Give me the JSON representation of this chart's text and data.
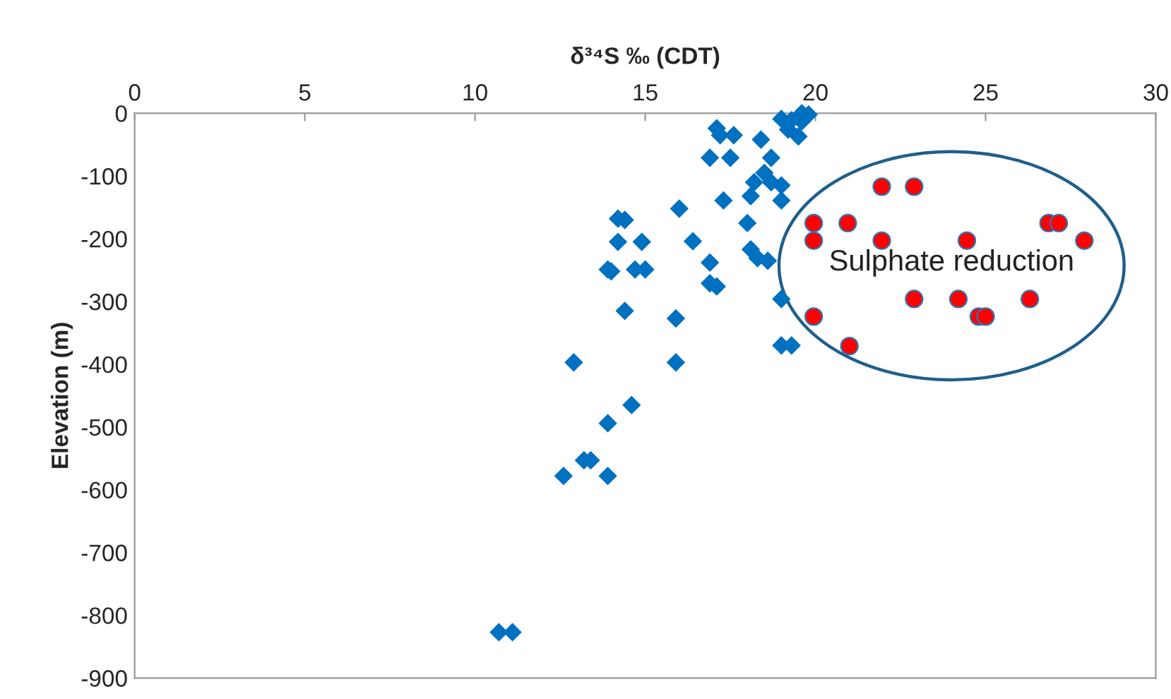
{
  "chart_data": {
    "type": "scatter",
    "xlabel": "δ³⁴S ‰ (CDT)",
    "ylabel": "Elevation (m)",
    "annotations": [
      "Sulphate reduction"
    ],
    "xlim": [
      0,
      30
    ],
    "xticks": [
      0,
      5,
      10,
      15,
      20,
      25,
      30
    ],
    "ylim": [
      -900,
      0
    ],
    "yticks": [
      -900,
      -800,
      -700,
      -600,
      -500,
      -400,
      -300,
      -200,
      -100,
      0
    ],
    "grid": false,
    "legend": false,
    "series": [
      {
        "color": "#0070c0",
        "marker": "diamond",
        "x": [
          17.1,
          17.2,
          17.6,
          18.4,
          16.9,
          17.5,
          18.7,
          19.0,
          19.3,
          19.6,
          19.6,
          19.8,
          19.2,
          19.5,
          18.5,
          18.2,
          18.7,
          19.0,
          18.1,
          19.0,
          17.3,
          16.0,
          18.0,
          16.4,
          14.2,
          14.4,
          14.2,
          14.9,
          18.1,
          18.3,
          18.6,
          16.9,
          13.9,
          14.0,
          14.7,
          15.0,
          16.9,
          17.1,
          19.0,
          14.4,
          15.9,
          19.0,
          19.3,
          12.9,
          15.9,
          14.6,
          13.9,
          13.2,
          13.4,
          12.6,
          13.9,
          10.7,
          11.1
        ],
        "values": [
          -24,
          -35,
          -35,
          -42,
          -71,
          -71,
          -71,
          -9,
          -11,
          -13,
          0,
          -2,
          -26,
          -37,
          -95,
          -110,
          -110,
          -115,
          -132,
          -139,
          -139,
          -152,
          -175,
          -204,
          -168,
          -170,
          -205,
          -205,
          -217,
          -231,
          -235,
          -238,
          -249,
          -252,
          -249,
          -249,
          -271,
          -276,
          -296,
          -315,
          -327,
          -370,
          -370,
          -397,
          -397,
          -465,
          -494,
          -553,
          -553,
          -578,
          -578,
          -827,
          -827
        ]
      },
      {
        "color": "#ff0000",
        "marker": "circle",
        "x": [
          21.95,
          22.9,
          19.95,
          20.95,
          26.85,
          27.15,
          19.95,
          21.95,
          24.45,
          27.9,
          22.9,
          24.2,
          26.3,
          24.8,
          25.0,
          19.95,
          21.0
        ],
        "values": [
          -117,
          -117,
          -175,
          -175,
          -175,
          -175,
          -203,
          -203,
          -203,
          -203,
          -296,
          -296,
          -296,
          -324,
          -324,
          -324,
          -371
        ]
      }
    ]
  }
}
